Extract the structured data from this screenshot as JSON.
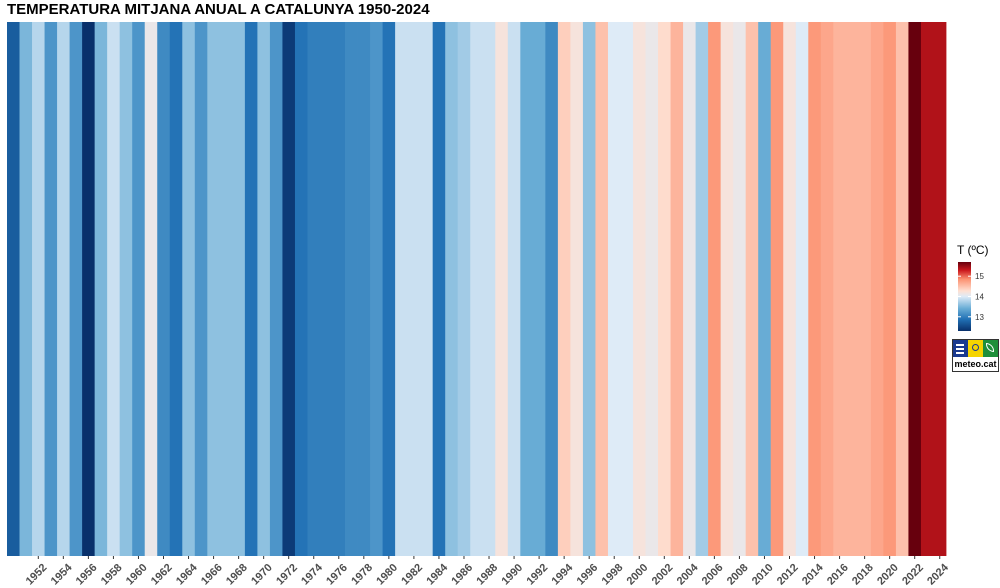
{
  "chart_data": {
    "type": "heatmap",
    "title": "TEMPERATURA MITJANA ANUAL A CATALUNYA 1950-2024",
    "xlabel": "",
    "ylabel": "",
    "x_tick_labels": [
      "1952",
      "1954",
      "1956",
      "1958",
      "1960",
      "1962",
      "1964",
      "1966",
      "1968",
      "1970",
      "1972",
      "1974",
      "1976",
      "1978",
      "1980",
      "1982",
      "1984",
      "1986",
      "1988",
      "1990",
      "1992",
      "1994",
      "1996",
      "1998",
      "2000",
      "2002",
      "2004",
      "2006",
      "2008",
      "2010",
      "2012",
      "2014",
      "2016",
      "2018",
      "2020",
      "2022",
      "2024"
    ],
    "years": [
      1950,
      1951,
      1952,
      1953,
      1954,
      1955,
      1956,
      1957,
      1958,
      1959,
      1960,
      1961,
      1962,
      1963,
      1964,
      1965,
      1966,
      1967,
      1968,
      1969,
      1970,
      1971,
      1972,
      1973,
      1974,
      1975,
      1976,
      1977,
      1978,
      1979,
      1980,
      1981,
      1982,
      1983,
      1984,
      1985,
      1986,
      1987,
      1988,
      1989,
      1990,
      1991,
      1992,
      1993,
      1994,
      1995,
      1996,
      1997,
      1998,
      1999,
      2000,
      2001,
      2002,
      2003,
      2004,
      2005,
      2006,
      2007,
      2008,
      2009,
      2010,
      2011,
      2012,
      2013,
      2014,
      2015,
      2016,
      2017,
      2018,
      2019,
      2020,
      2021,
      2022,
      2023,
      2024
    ],
    "values": [
      12.7,
      13.5,
      13.8,
      13.2,
      13.8,
      13.2,
      12.3,
      13.5,
      13.9,
      13.6,
      13.2,
      14.1,
      13.1,
      12.9,
      13.6,
      13.2,
      13.6,
      13.6,
      13.6,
      12.9,
      13.6,
      13.2,
      12.4,
      12.9,
      13.0,
      13.0,
      13.0,
      13.1,
      13.1,
      13.2,
      12.9,
      13.9,
      13.9,
      13.9,
      12.9,
      13.6,
      13.7,
      13.9,
      13.9,
      14.2,
      13.9,
      13.4,
      13.4,
      13.1,
      14.4,
      14.2,
      13.6,
      14.5,
      14.0,
      14.0,
      14.2,
      14.1,
      14.3,
      14.6,
      14.1,
      13.7,
      14.8,
      14.2,
      14.1,
      14.5,
      13.4,
      14.8,
      14.2,
      14.0,
      14.8,
      14.7,
      14.6,
      14.6,
      14.6,
      14.7,
      14.8,
      14.5,
      15.7,
      15.4,
      15.4
    ],
    "colorbar": {
      "title": "T (ºC)",
      "min": 12.3,
      "max": 15.7,
      "ticks": [
        13,
        14,
        15
      ]
    },
    "grid": false,
    "legend_position": "right"
  },
  "logo": {
    "text": "meteo.cat"
  }
}
